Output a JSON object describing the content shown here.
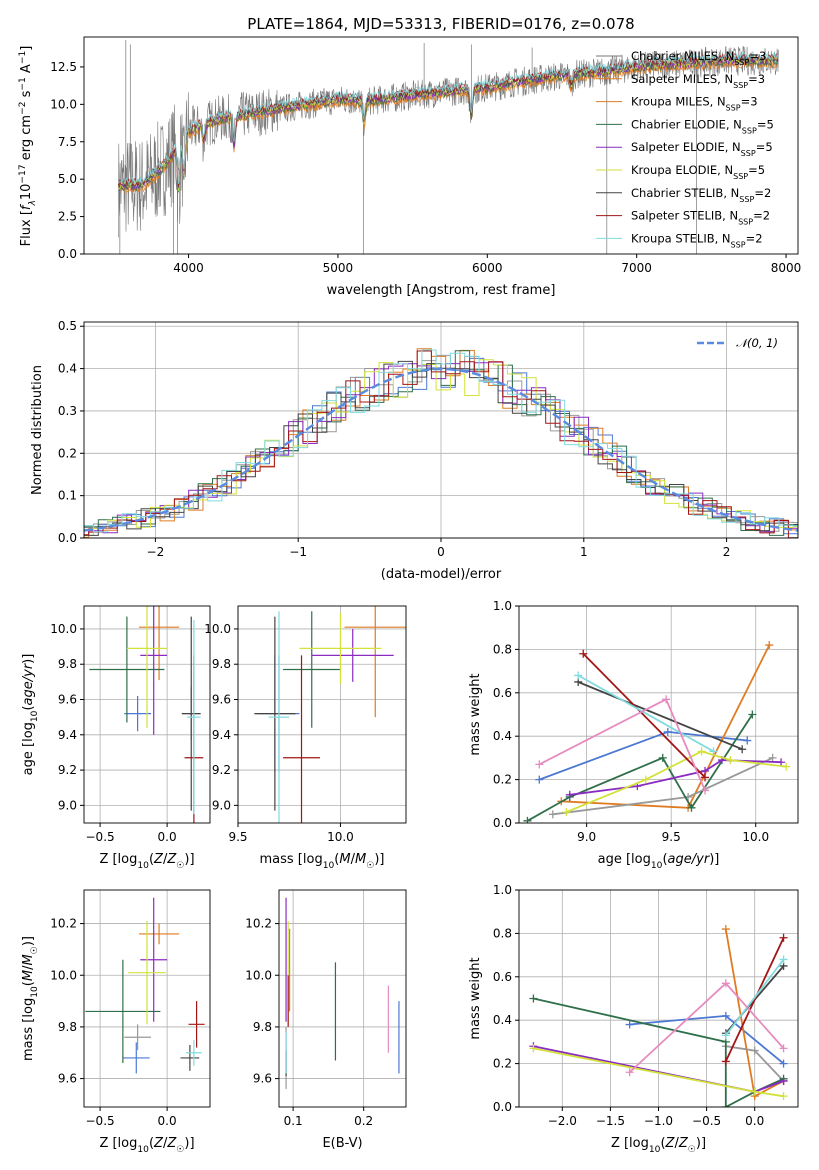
{
  "colors": [
    "#4c78d4",
    "#e07b22",
    "#999999",
    "#2f6f4a",
    "#8a2bc2",
    "#d2e23b",
    "#444444",
    "#a31515",
    "#7fdbe0"
  ],
  "spec_colors": [
    "#777777",
    "#e07b22",
    "#e07b22",
    "#2f6f4a",
    "#8a2bc2",
    "#d2e23b",
    "#444444",
    "#a31515",
    "#7fdbe0"
  ],
  "series_names": [
    "Chabrier MILES, N_SSP=3",
    "Salpeter MILES, N_SSP=3",
    "Kroupa MILES, N_SSP=3",
    "Chabrier ELODIE, N_SSP=5",
    "Salpeter ELODIE, N_SSP=5",
    "Kroupa ELODIE, N_SSP=5",
    "Chabrier STELIB, N_SSP=2",
    "Salpeter STELIB, N_SSP=2",
    "Kroupa STELIB, N_SSP=2"
  ],
  "legend_spec": [
    {
      "pre": "Chabrier MILES, N",
      "sub": "SSP",
      "post": "=3"
    },
    {
      "pre": "Salpeter MILES, N",
      "sub": "SSP",
      "post": "=3"
    },
    {
      "pre": "Kroupa MILES, N",
      "sub": "SSP",
      "post": "=3"
    },
    {
      "pre": "Chabrier ELODIE, N",
      "sub": "SSP",
      "post": "=5"
    },
    {
      "pre": "Salpeter ELODIE, N",
      "sub": "SSP",
      "post": "=5"
    },
    {
      "pre": "Kroupa ELODIE, N",
      "sub": "SSP",
      "post": "=5"
    },
    {
      "pre": "Chabrier STELIB, N",
      "sub": "SSP",
      "post": "=2"
    },
    {
      "pre": "Salpeter STELIB, N",
      "sub": "SSP",
      "post": "=2"
    },
    {
      "pre": "Kroupa STELIB, N",
      "sub": "SSP",
      "post": "=2"
    }
  ],
  "normal_legend": "𝒩(0, 1)",
  "chart_data": [
    {
      "id": "spectrum",
      "type": "line",
      "title": "PLATE=1864, MJD=53313, FIBERID=0176, z=0.078",
      "xlabel": "wavelength [Angstrom, rest frame]",
      "ylabel": "Flux [fλ10⁻¹⁷ erg cm⁻² s⁻¹ A⁻¹]",
      "xlim": [
        3300,
        8080
      ],
      "ylim": [
        0,
        14.5
      ],
      "xticks": [
        4000,
        5000,
        6000,
        7000,
        8000
      ],
      "yticks": [
        0.0,
        2.5,
        5.0,
        7.5,
        10.0,
        12.5
      ],
      "continuum": {
        "x": [
          3530,
          3700,
          3850,
          4000,
          4200,
          4500,
          4800,
          5000,
          5200,
          5500,
          5800,
          6000,
          6200,
          6500,
          6800,
          7000,
          7300,
          7600,
          7950
        ],
        "y": [
          4.5,
          4.6,
          6.0,
          8.2,
          9.0,
          9.5,
          10.0,
          10.3,
          10.2,
          10.6,
          10.9,
          11.1,
          11.5,
          11.9,
          12.2,
          12.5,
          12.7,
          12.9,
          12.9
        ]
      },
      "dips": [
        {
          "x": 3934,
          "depth": 3.0
        },
        {
          "x": 3969,
          "depth": 2.5
        },
        {
          "x": 4101,
          "depth": 1.0
        },
        {
          "x": 4304,
          "depth": 2.0
        },
        {
          "x": 5175,
          "depth": 1.5
        },
        {
          "x": 5892,
          "depth": 1.8
        },
        {
          "x": 6563,
          "depth": 0.8
        }
      ],
      "spikes": [
        {
          "x": 3580,
          "y": 14.3
        },
        {
          "x": 3610,
          "y": 14.0
        },
        {
          "x": 5577,
          "y": 14.1
        },
        {
          "x": 5893,
          "y": 14.0
        },
        {
          "x": 6300,
          "y": 13.8
        }
      ],
      "drops": [
        {
          "x": 3540,
          "y": 0
        },
        {
          "x": 3900,
          "y": 0
        },
        {
          "x": 3925,
          "y": 0
        },
        {
          "x": 5170,
          "y": 0
        },
        {
          "x": 6800,
          "y": 0
        },
        {
          "x": 7400,
          "y": 0
        }
      ],
      "legend_location": "right"
    },
    {
      "id": "residuals",
      "type": "histogram",
      "xlabel": "(data-model)/error",
      "ylabel": "Normed distribution",
      "xlim": [
        -2.5,
        2.5
      ],
      "ylim": [
        0,
        0.51
      ],
      "xticks": [
        -2,
        -1,
        0,
        1,
        2
      ],
      "yticks": [
        0.0,
        0.1,
        0.2,
        0.3,
        0.4,
        0.5
      ],
      "bin_edges_start": -2.5,
      "bin_width": 0.1,
      "legend": "N(0,1)",
      "legend_location": "top-right"
    },
    {
      "id": "age-Z",
      "type": "errorbar",
      "xlabel": "Z [log₁₀(Z/Z☉)]",
      "ylabel": "age  [log₁₀(age/yr)]",
      "xlim": [
        -0.62,
        0.32
      ],
      "ylim": [
        8.9,
        10.13
      ],
      "xticks": [
        -0.5,
        0.0
      ],
      "yticks": [
        9.0,
        9.2,
        9.4,
        9.6,
        9.8,
        10.0
      ],
      "points": [
        {
          "x": -0.22,
          "xerr": 0.1,
          "y": 9.52,
          "yerr": 0.1
        },
        {
          "x": -0.06,
          "xerr": 0.15,
          "y": 10.01,
          "yerr": 0.3
        },
        {
          "x": 0.18,
          "xerr": 0.07,
          "y": 9.52,
          "yerr": 0.15
        },
        {
          "x": -0.3,
          "xerr": 0.28,
          "y": 9.77,
          "yerr": 0.3
        },
        {
          "x": -0.1,
          "xerr": 0.1,
          "y": 9.85,
          "yerr": 0.45
        },
        {
          "x": -0.15,
          "xerr": 0.15,
          "y": 9.89,
          "yerr": 0.45
        },
        {
          "x": 0.18,
          "xerr": 0.07,
          "y": 9.52,
          "yerr": 0.55
        },
        {
          "x": 0.2,
          "xerr": 0.07,
          "y": 9.27,
          "yerr": 0.58
        },
        {
          "x": 0.2,
          "xerr": 0.05,
          "y": 9.5,
          "yerr": 0.55
        }
      ]
    },
    {
      "id": "age-mass",
      "type": "errorbar",
      "xlabel": "mass [log₁₀(M/M☉)]",
      "xlim": [
        9.5,
        10.32
      ],
      "ylim": [
        8.9,
        10.13
      ],
      "xticks": [
        9.5,
        10.0
      ],
      "yticks": [
        9.0,
        9.2,
        9.4,
        9.6,
        9.8,
        10.0
      ],
      "points": [
        {
          "x": 9.7,
          "xerr": 0.1,
          "y": 9.52,
          "yerr": 0.33
        },
        {
          "x": 10.17,
          "xerr": 0.15,
          "y": 10.01,
          "yerr": 0.51
        },
        {
          "x": 9.68,
          "xerr": 0.1,
          "y": 9.52,
          "yerr": 0.33
        },
        {
          "x": 9.86,
          "xerr": 0.14,
          "y": 9.77,
          "yerr": 0.33
        },
        {
          "x": 10.06,
          "xerr": 0.2,
          "y": 9.85,
          "yerr": 0.15
        },
        {
          "x": 10.0,
          "xerr": 0.2,
          "y": 9.89,
          "yerr": 0.2
        },
        {
          "x": 9.68,
          "xerr": 0.1,
          "y": 9.52,
          "yerr": 0.55
        },
        {
          "x": 9.81,
          "xerr": 0.09,
          "y": 9.27,
          "yerr": 0.58
        },
        {
          "x": 9.7,
          "xerr": 0.05,
          "y": 9.5,
          "yerr": 0.6
        }
      ]
    },
    {
      "id": "weight-age",
      "type": "line",
      "xlabel": "age  [log₁₀(age/yr)]",
      "ylabel": "mass weight",
      "xlim": [
        8.6,
        10.25
      ],
      "ylim": [
        0,
        1.0
      ],
      "xticks": [
        9.0,
        9.5,
        10.0
      ],
      "yticks": [
        0.0,
        0.2,
        0.4,
        0.6,
        0.8,
        1.0
      ],
      "series": [
        {
          "x": [
            8.72,
            9.48,
            9.95
          ],
          "y": [
            0.2,
            0.42,
            0.38
          ]
        },
        {
          "x": [
            8.85,
            9.6,
            10.08
          ],
          "y": [
            0.1,
            0.07,
            0.82
          ]
        },
        {
          "x": [
            8.8,
            9.6,
            10.1
          ],
          "y": [
            0.04,
            0.12,
            0.3
          ]
        },
        {
          "x": [
            8.65,
            8.9,
            9.45,
            9.62,
            9.98
          ],
          "y": [
            0.01,
            0.12,
            0.3,
            0.07,
            0.5
          ]
        },
        {
          "x": [
            8.9,
            9.3,
            9.7,
            9.8,
            10.15
          ],
          "y": [
            0.13,
            0.17,
            0.24,
            0.29,
            0.28
          ]
        },
        {
          "x": [
            8.88,
            9.35,
            9.68,
            9.85,
            10.18
          ],
          "y": [
            0.05,
            0.2,
            0.33,
            0.29,
            0.26
          ]
        },
        {
          "x": [
            8.95,
            9.92
          ],
          "y": [
            0.65,
            0.34
          ]
        },
        {
          "x": [
            8.98,
            9.7
          ],
          "y": [
            0.78,
            0.21
          ]
        },
        {
          "x": [
            8.95,
            9.75
          ],
          "y": [
            0.68,
            0.33
          ]
        }
      ],
      "extra": {
        "x": [
          8.72,
          9.47,
          9.7
        ],
        "y": [
          0.27,
          0.57,
          0.15
        ]
      }
    },
    {
      "id": "mass-Z",
      "type": "errorbar",
      "xlabel": "Z [log₁₀(Z/Z☉)]",
      "ylabel": "mass [log₁₀(M/M☉)]",
      "xlim": [
        -0.62,
        0.32
      ],
      "ylim": [
        9.49,
        10.33
      ],
      "xticks": [
        -0.5,
        0.0
      ],
      "yticks": [
        9.6,
        9.8,
        10.0,
        10.2
      ],
      "points": [
        {
          "x": -0.23,
          "xerr": 0.1,
          "y": 9.68,
          "yerr": 0.06
        },
        {
          "x": -0.06,
          "xerr": 0.15,
          "y": 10.16,
          "yerr": 0.04
        },
        {
          "x": -0.22,
          "xerr": 0.1,
          "y": 9.76,
          "yerr": 0.05
        },
        {
          "x": -0.33,
          "xerr": 0.28,
          "y": 9.86,
          "yerr": 0.2
        },
        {
          "x": -0.1,
          "xerr": 0.1,
          "y": 10.06,
          "yerr": 0.24
        },
        {
          "x": -0.15,
          "xerr": 0.14,
          "y": 10.01,
          "yerr": 0.2
        },
        {
          "x": 0.17,
          "xerr": 0.07,
          "y": 9.68,
          "yerr": 0.05
        },
        {
          "x": 0.22,
          "xerr": 0.06,
          "y": 9.81,
          "yerr": 0.09
        },
        {
          "x": 0.2,
          "xerr": 0.06,
          "y": 9.7,
          "yerr": 0.05
        }
      ]
    },
    {
      "id": "mass-ebv",
      "type": "errorbar",
      "xlabel": "E(B-V)",
      "xlim": [
        0.08,
        0.26
      ],
      "ylim": [
        9.49,
        10.33
      ],
      "xticks": [
        0.1,
        0.2
      ],
      "yticks": [
        9.6,
        9.8,
        10.0,
        10.2
      ],
      "points": [
        {
          "x": 0.25,
          "y": 9.76,
          "yerr": 0.14
        },
        {
          "x": 0.095,
          "y": 10.02,
          "yerr": 0.16
        },
        {
          "x": 0.09,
          "y": 9.68,
          "yerr": 0.12
        },
        {
          "x": 0.16,
          "y": 9.86,
          "yerr": 0.19
        },
        {
          "x": 0.09,
          "y": 10.06,
          "yerr": 0.24
        },
        {
          "x": 0.093,
          "y": 10.01,
          "yerr": 0.2
        },
        {
          "x": 0.09,
          "y": 9.66,
          "yerr": 0.05
        },
        {
          "x": 0.093,
          "y": 9.9,
          "yerr": 0.1
        },
        {
          "x": 0.09,
          "y": 9.7,
          "yerr": 0.08
        }
      ],
      "extra": {
        "x": 0.235,
        "y": 9.83,
        "yerr": 0.13
      }
    },
    {
      "id": "weight-Z",
      "type": "line",
      "xlabel": "Z [log₁₀(Z/Z☉)]",
      "ylabel": "mass weight",
      "xlim": [
        -2.45,
        0.45
      ],
      "ylim": [
        0,
        1.0
      ],
      "xticks": [
        -2.0,
        -1.5,
        -1.0,
        -0.5,
        0.0
      ],
      "yticks": [
        0.0,
        0.2,
        0.4,
        0.6,
        0.8,
        1.0
      ],
      "series": [
        {
          "x": [
            -1.3,
            -0.3,
            0.3
          ],
          "y": [
            0.38,
            0.42,
            0.2
          ]
        },
        {
          "x": [
            -0.3,
            0.0,
            0.3
          ],
          "y": [
            0.82,
            0.05,
            0.12
          ]
        },
        {
          "x": [
            -0.3,
            0.0,
            0.3
          ],
          "y": [
            0.28,
            0.26,
            0.12
          ]
        },
        {
          "x": [
            -2.3,
            -0.3,
            -0.3,
            0.0,
            0.3
          ],
          "y": [
            0.5,
            0.3,
            0.0,
            0.07,
            0.13
          ]
        },
        {
          "x": [
            -2.3,
            0.0,
            0.3
          ],
          "y": [
            0.28,
            0.07,
            0.12
          ]
        },
        {
          "x": [
            -2.3,
            0.0,
            0.3
          ],
          "y": [
            0.27,
            0.07,
            0.05
          ]
        },
        {
          "x": [
            -0.3,
            0.3
          ],
          "y": [
            0.34,
            0.65
          ]
        },
        {
          "x": [
            -0.3,
            0.3
          ],
          "y": [
            0.21,
            0.78
          ]
        },
        {
          "x": [
            -0.3,
            0.3
          ],
          "y": [
            0.33,
            0.68
          ]
        }
      ],
      "extra": {
        "x": [
          -1.3,
          -0.3,
          0.3
        ],
        "y": [
          0.16,
          0.57,
          0.27
        ]
      }
    }
  ]
}
